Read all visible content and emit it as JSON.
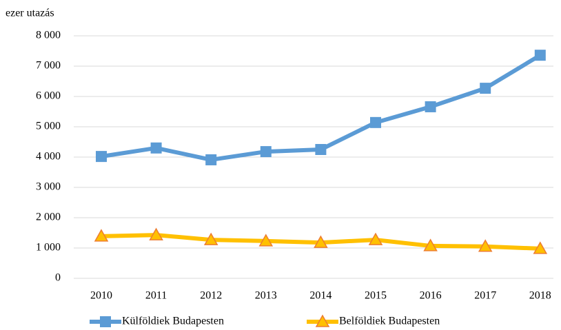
{
  "chart_data": {
    "type": "line",
    "y_axis_label": "ezer utazás",
    "categories": [
      "2010",
      "2011",
      "2012",
      "2013",
      "2014",
      "2015",
      "2016",
      "2017",
      "2018"
    ],
    "series": [
      {
        "name": "Külföldiek Budapesten",
        "color": "#5b9bd5",
        "marker": "square",
        "values": [
          4020,
          4300,
          3910,
          4180,
          4250,
          5140,
          5660,
          6270,
          7360
        ]
      },
      {
        "name": "Belföldiek Budapesten",
        "color": "#ffc000",
        "marker": "triangle",
        "values": [
          1390,
          1430,
          1270,
          1230,
          1180,
          1270,
          1070,
          1050,
          980
        ]
      }
    ],
    "ylim": [
      0,
      8000
    ],
    "yticks": [
      0,
      {
        "value": 1000,
        "label": "1 000"
      },
      {
        "value": 2000,
        "label": "2 000"
      },
      {
        "value": 3000,
        "label": "3 000"
      },
      {
        "value": 4000,
        "label": "4 000"
      },
      {
        "value": 5000,
        "label": "5 000"
      },
      {
        "value": 6000,
        "label": "6 000"
      },
      {
        "value": 7000,
        "label": "7 000"
      },
      {
        "value": 8000,
        "label": "8 000"
      }
    ],
    "grid": true,
    "legend": "bottom"
  }
}
